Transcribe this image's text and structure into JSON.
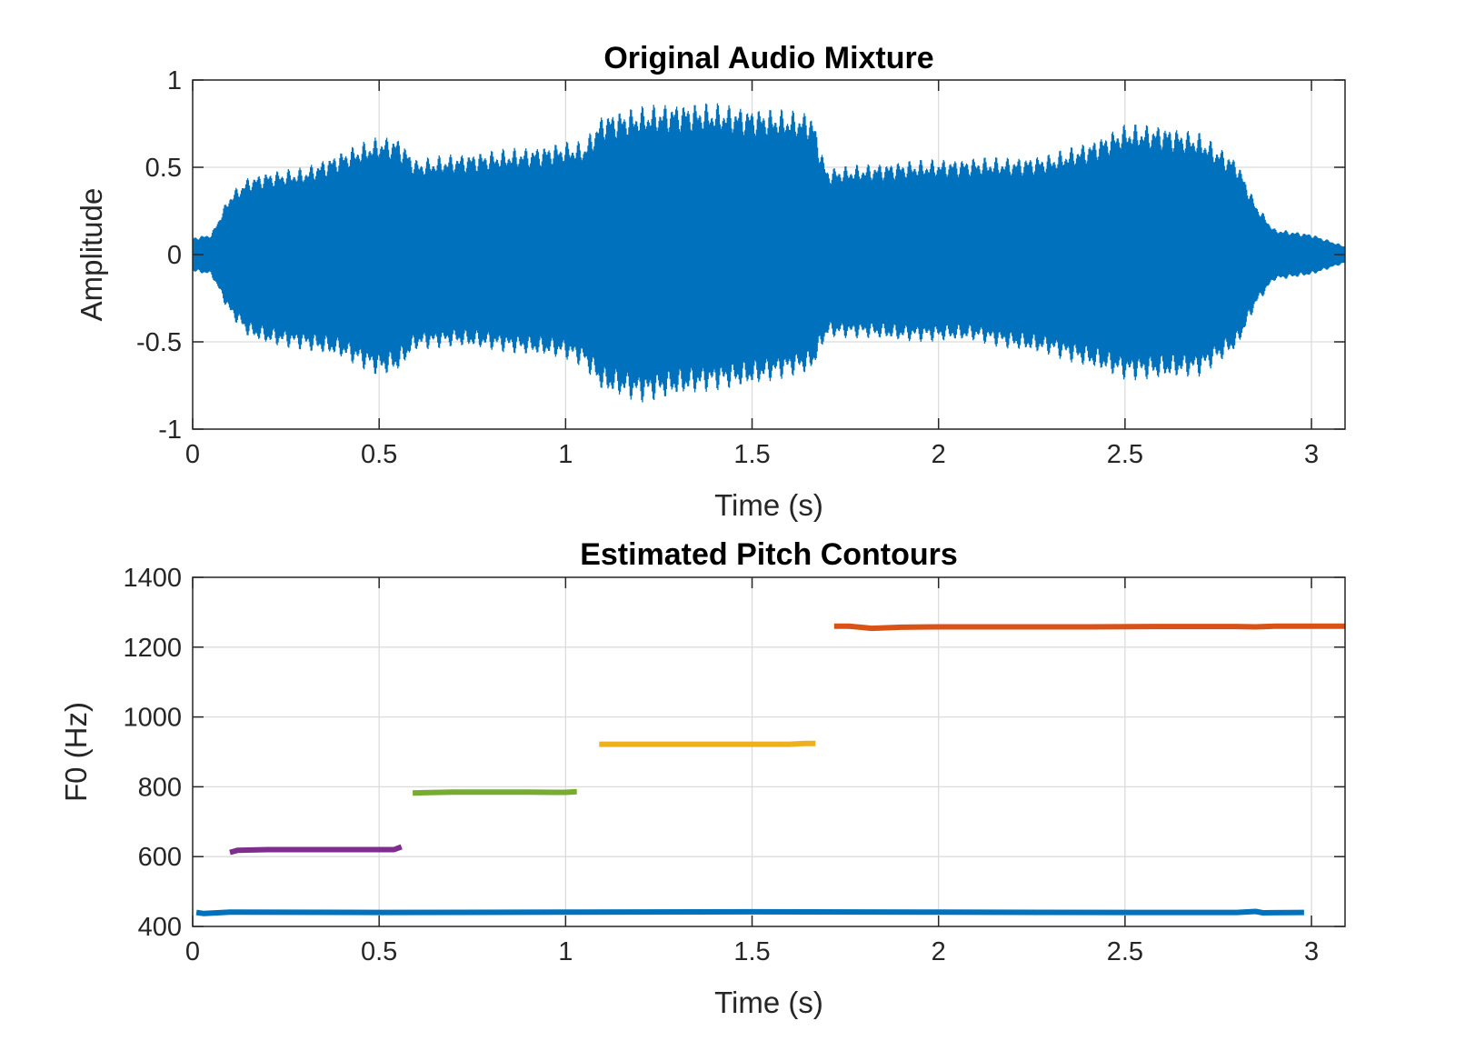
{
  "chart_data": [
    {
      "type": "line",
      "title": "Original Audio Mixture",
      "xlabel": "Time (s)",
      "ylabel": "Amplitude",
      "xlim": [
        0,
        3.09
      ],
      "ylim": [
        -1,
        1
      ],
      "xticks": [
        0,
        0.5,
        1,
        1.5,
        2,
        2.5,
        3
      ],
      "xtick_labels": [
        "0",
        "0.5",
        "1",
        "1.5",
        "2",
        "2.5",
        "3"
      ],
      "yticks": [
        -1,
        -0.5,
        0,
        0.5,
        1
      ],
      "ytick_labels": [
        "-1",
        "-0.5",
        "0",
        "0.5",
        "1"
      ],
      "grid": true,
      "series": [
        {
          "color": "#0072BD",
          "envelope_t": [
            0,
            0.05,
            0.1,
            0.15,
            0.2,
            0.3,
            0.4,
            0.5,
            0.55,
            0.6,
            0.7,
            0.8,
            0.9,
            1.0,
            1.05,
            1.1,
            1.2,
            1.3,
            1.4,
            1.5,
            1.6,
            1.66,
            1.7,
            1.8,
            1.9,
            2.0,
            2.1,
            2.2,
            2.3,
            2.4,
            2.5,
            2.6,
            2.7,
            2.8,
            2.85,
            2.9,
            3.0,
            3.09
          ],
          "envelope_upper": [
            0.1,
            0.12,
            0.35,
            0.45,
            0.48,
            0.5,
            0.6,
            0.68,
            0.68,
            0.55,
            0.58,
            0.6,
            0.62,
            0.65,
            0.65,
            0.82,
            0.85,
            0.88,
            0.87,
            0.85,
            0.83,
            0.82,
            0.5,
            0.52,
            0.54,
            0.55,
            0.56,
            0.56,
            0.58,
            0.65,
            0.75,
            0.75,
            0.7,
            0.55,
            0.3,
            0.15,
            0.12,
            0.05
          ],
          "envelope_lower": [
            -0.1,
            -0.12,
            -0.35,
            -0.48,
            -0.52,
            -0.55,
            -0.6,
            -0.7,
            -0.68,
            -0.55,
            -0.53,
            -0.55,
            -0.58,
            -0.6,
            -0.65,
            -0.8,
            -0.85,
            -0.82,
            -0.78,
            -0.76,
            -0.7,
            -0.68,
            -0.48,
            -0.48,
            -0.5,
            -0.5,
            -0.5,
            -0.55,
            -0.58,
            -0.65,
            -0.72,
            -0.72,
            -0.7,
            -0.55,
            -0.3,
            -0.15,
            -0.12,
            -0.05
          ]
        }
      ]
    },
    {
      "type": "line",
      "title": "Estimated Pitch Contours",
      "xlabel": "Time (s)",
      "ylabel": "F0 (Hz)",
      "xlim": [
        0,
        3.09
      ],
      "ylim": [
        400,
        1400
      ],
      "xticks": [
        0,
        0.5,
        1,
        1.5,
        2,
        2.5,
        3
      ],
      "xtick_labels": [
        "0",
        "0.5",
        "1",
        "1.5",
        "2",
        "2.5",
        "3"
      ],
      "yticks": [
        400,
        600,
        800,
        1000,
        1200,
        1400
      ],
      "ytick_labels": [
        "400",
        "600",
        "800",
        "1000",
        "1200",
        "1400"
      ],
      "grid": true,
      "series": [
        {
          "color": "#0072BD",
          "x": [
            0.01,
            0.03,
            0.1,
            0.5,
            1.0,
            1.5,
            2.0,
            2.5,
            2.8,
            2.85,
            2.87,
            2.98
          ],
          "y": [
            440,
            437,
            441,
            440,
            441,
            442,
            441,
            440,
            440,
            443,
            439,
            440
          ]
        },
        {
          "color": "#7E2F8E",
          "x": [
            0.1,
            0.12,
            0.2,
            0.3,
            0.4,
            0.5,
            0.54,
            0.56
          ],
          "y": [
            612,
            618,
            620,
            620,
            620,
            620,
            620,
            628
          ]
        },
        {
          "color": "#77AC30",
          "x": [
            0.59,
            0.62,
            0.7,
            0.8,
            0.9,
            0.97,
            1.0,
            1.03
          ],
          "y": [
            782,
            783,
            785,
            785,
            785,
            784,
            784,
            786
          ]
        },
        {
          "color": "#EDB120",
          "x": [
            1.09,
            1.2,
            1.3,
            1.4,
            1.5,
            1.6,
            1.64,
            1.67
          ],
          "y": [
            922,
            922,
            922,
            922,
            922,
            922,
            924,
            924
          ]
        },
        {
          "color": "#D95319",
          "x": [
            1.72,
            1.76,
            1.8,
            1.82,
            1.9,
            2.0,
            2.2,
            2.4,
            2.6,
            2.8,
            2.85,
            2.9,
            3.0,
            3.09
          ],
          "y": [
            1260,
            1260,
            1256,
            1254,
            1257,
            1258,
            1258,
            1258,
            1259,
            1259,
            1258,
            1260,
            1260,
            1260
          ]
        }
      ]
    }
  ]
}
